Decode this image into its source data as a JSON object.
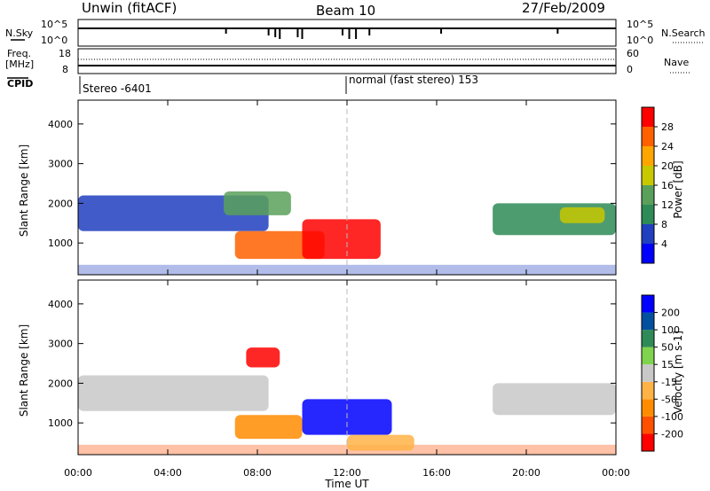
{
  "header": {
    "station": "Unwin (fitACF)",
    "beam": "Beam 10",
    "date": "27/Feb/2009"
  },
  "top_panels": {
    "nsky_label": "N.Sky",
    "nsearch_label": "N.Search",
    "nsky_ticks": [
      "10^5",
      "10^0"
    ],
    "nsearch_ticks": [
      "10^5",
      "10^0"
    ],
    "freq_label": "Freq.",
    "freq_unit": "[MHz]",
    "freq_ticks": [
      "18",
      "8"
    ],
    "nave_label": "Nave",
    "nave_ticks": [
      "60",
      "0"
    ],
    "cpid_label": "CPID",
    "cpid_left": "Stereo -6401",
    "cpid_right": "normal (fast stereo) 153"
  },
  "colors": {
    "power": [
      "#0000ff",
      "#2040c0",
      "#2e8b57",
      "#5aa05a",
      "#c8c800",
      "#ffa500",
      "#ff6000",
      "#ff0000"
    ],
    "velocity": [
      "#ff0000",
      "#ff5000",
      "#ff8c00",
      "#ffb347",
      "#c8c8c8",
      "#7fd34e",
      "#2e8b57",
      "#0050a0",
      "#0000ff"
    ],
    "dashed_line": "#bbbbbb"
  },
  "chart_data": [
    {
      "type": "heatmap",
      "name": "power",
      "xlabel": "",
      "ylabel": "Slant Range [km]",
      "x_ticks": [
        "00:00",
        "04:00",
        "08:00",
        "12:00",
        "16:00",
        "20:00",
        "00:00"
      ],
      "y_ticks": [
        1000,
        2000,
        3000,
        4000
      ],
      "ylim": [
        200,
        4600
      ],
      "colorbar_label": "Power [dB]",
      "colorbar_ticks": [
        4,
        8,
        12,
        16,
        20,
        24,
        28
      ],
      "regions": [
        {
          "t": [
            0.0,
            8.5
          ],
          "r": [
            1300,
            2200
          ],
          "level": 1
        },
        {
          "t": [
            6.5,
            9.5
          ],
          "r": [
            1700,
            2300
          ],
          "level": 3
        },
        {
          "t": [
            7.0,
            11.0
          ],
          "r": [
            600,
            1300
          ],
          "level": 6
        },
        {
          "t": [
            10.0,
            13.5
          ],
          "r": [
            600,
            1600
          ],
          "level": 7
        },
        {
          "t": [
            18.5,
            24.0
          ],
          "r": [
            1200,
            2000
          ],
          "level": 2
        },
        {
          "t": [
            21.5,
            23.5
          ],
          "r": [
            1500,
            1900
          ],
          "level": 4
        }
      ]
    },
    {
      "type": "heatmap",
      "name": "velocity",
      "xlabel": "Time UT",
      "ylabel": "Slant Range [km]",
      "x_ticks": [
        "00:00",
        "04:00",
        "08:00",
        "12:00",
        "16:00",
        "20:00",
        "00:00"
      ],
      "y_ticks": [
        1000,
        2000,
        3000,
        4000
      ],
      "ylim": [
        200,
        4600
      ],
      "colorbar_label": "Velocity [m s-1]",
      "colorbar_ticks": [
        200,
        100,
        50,
        15,
        -15,
        -50,
        -100,
        -200
      ],
      "regions": [
        {
          "t": [
            0.0,
            8.5
          ],
          "r": [
            1300,
            2200
          ],
          "level": 4
        },
        {
          "t": [
            7.5,
            9.0
          ],
          "r": [
            2400,
            2900
          ],
          "level": 0
        },
        {
          "t": [
            7.0,
            10.0
          ],
          "r": [
            600,
            1200
          ],
          "level": 2
        },
        {
          "t": [
            10.0,
            14.0
          ],
          "r": [
            700,
            1600
          ],
          "level": 8
        },
        {
          "t": [
            12.0,
            15.0
          ],
          "r": [
            300,
            700
          ],
          "level": 3
        },
        {
          "t": [
            18.5,
            24.0
          ],
          "r": [
            1200,
            2000
          ],
          "level": 4
        }
      ]
    }
  ]
}
